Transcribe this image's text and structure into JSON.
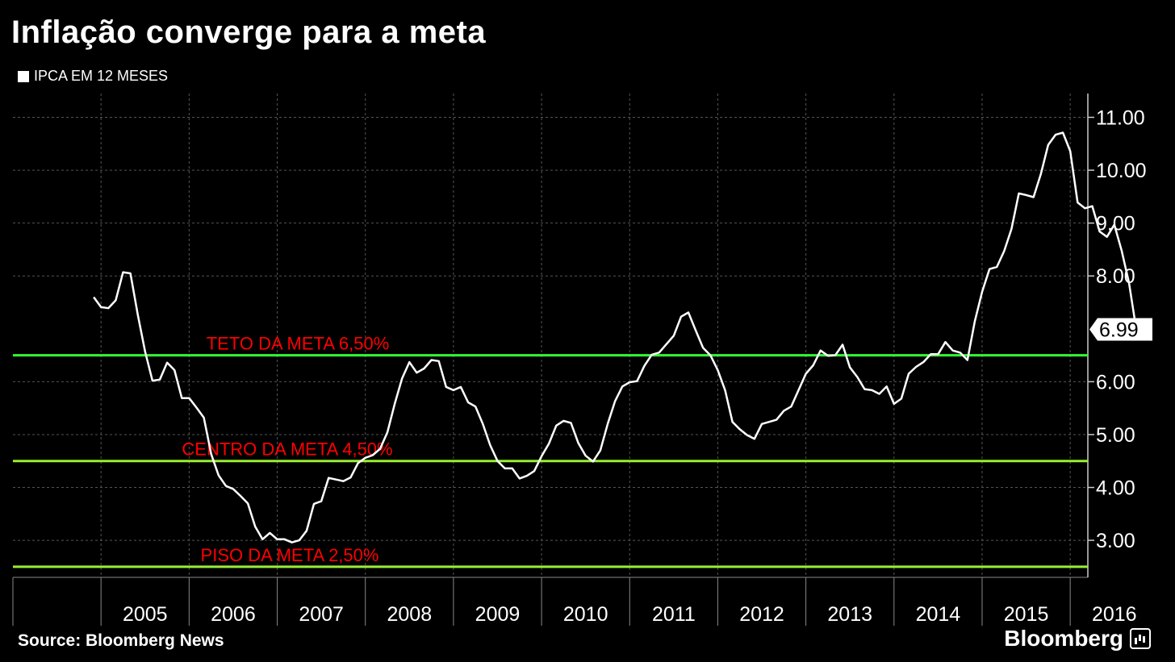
{
  "header": {
    "title": "Inflação converge para a meta",
    "legend_label": "IPCA EM 12 MESES"
  },
  "footer": {
    "source": "Source: Bloomberg News",
    "brand": "Bloomberg"
  },
  "colors": {
    "background": "#000000",
    "series": "#ffffff",
    "upper_line": "#33ff33",
    "center_line": "#99ee33",
    "lower_line": "#99ee33",
    "band_label": "#ff0000",
    "grid": "#555555"
  },
  "chart_data": {
    "type": "line",
    "title": "Inflação converge para a meta",
    "xlabel": "",
    "ylabel": "",
    "x_range": [
      2004.0,
      2016.2
    ],
    "ylim": [
      2.3,
      11.45
    ],
    "y_ticks": [
      {
        "value": 3.0,
        "label": "3.00"
      },
      {
        "value": 4.0,
        "label": "4.00"
      },
      {
        "value": 5.0,
        "label": "5.00"
      },
      {
        "value": 6.0,
        "label": "6.00"
      },
      {
        "value": 8.0,
        "label": "8.00"
      },
      {
        "value": 9.0,
        "label": "9.00"
      },
      {
        "value": 10.0,
        "label": "10.00"
      },
      {
        "value": 11.0,
        "label": "11.00"
      }
    ],
    "x_ticks": [
      "2005",
      "2006",
      "2007",
      "2008",
      "2009",
      "2010",
      "2011",
      "2012",
      "2013",
      "2014",
      "2015",
      "2016"
    ],
    "grid": true,
    "y_axis_side": "right",
    "last_value_label": "6.99",
    "series": [
      {
        "name": "IPCA EM 12 MESES",
        "start": "2004-12",
        "frequency": "monthly",
        "values": [
          7.6,
          7.41,
          7.39,
          7.54,
          8.07,
          8.05,
          7.27,
          6.57,
          6.02,
          6.04,
          6.36,
          6.22,
          5.69,
          5.69,
          5.51,
          5.32,
          4.63,
          4.23,
          4.03,
          3.97,
          3.84,
          3.7,
          3.26,
          3.02,
          3.14,
          3.02,
          3.02,
          2.96,
          3.0,
          3.18,
          3.69,
          3.74,
          4.18,
          4.15,
          4.12,
          4.19,
          4.46,
          4.56,
          4.61,
          4.73,
          5.04,
          5.58,
          6.06,
          6.37,
          6.17,
          6.25,
          6.41,
          6.39,
          5.9,
          5.84,
          5.9,
          5.61,
          5.53,
          5.2,
          4.8,
          4.5,
          4.36,
          4.36,
          4.17,
          4.22,
          4.31,
          4.59,
          4.83,
          5.17,
          5.26,
          5.22,
          4.84,
          4.6,
          4.49,
          4.7,
          5.2,
          5.63,
          5.91,
          5.99,
          6.01,
          6.3,
          6.51,
          6.55,
          6.71,
          6.87,
          7.23,
          7.31,
          6.97,
          6.64,
          6.5,
          6.22,
          5.84,
          5.24,
          5.1,
          4.99,
          4.92,
          5.2,
          5.24,
          5.28,
          5.45,
          5.53,
          5.84,
          6.15,
          6.31,
          6.59,
          6.49,
          6.5,
          6.7,
          6.27,
          6.09,
          5.86,
          5.84,
          5.77,
          5.91,
          5.58,
          5.68,
          6.15,
          6.28,
          6.37,
          6.52,
          6.52,
          6.75,
          6.59,
          6.55,
          6.41,
          7.14,
          7.7,
          8.13,
          8.17,
          8.47,
          8.89,
          9.56,
          9.53,
          9.49,
          9.93,
          10.48,
          10.67,
          10.71,
          10.36,
          9.39,
          9.28,
          9.32,
          8.84,
          8.74,
          8.97,
          8.48,
          7.87,
          6.99
        ]
      }
    ],
    "reference_lines": [
      {
        "label": "TETO DA META 6,50%",
        "value": 6.5
      },
      {
        "label": "CENTRO DA META 4,50%",
        "value": 4.5
      },
      {
        "label": "PISO DA META 2,50%",
        "value": 2.5
      }
    ]
  }
}
